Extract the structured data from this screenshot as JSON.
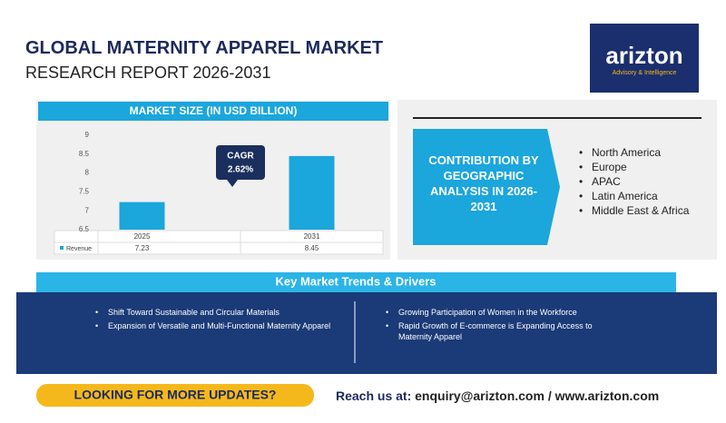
{
  "header": {
    "title": "GLOBAL MATERNITY APPAREL MARKET",
    "subtitle": "RESEARCH REPORT 2026-2031"
  },
  "logo": {
    "name": "arizton",
    "tagline": "Advisory & Intelligence"
  },
  "chart_data": {
    "type": "bar",
    "title": "MARKET SIZE (IN USD BILLION)",
    "categories": [
      "2025",
      "2031"
    ],
    "series": [
      {
        "name": "Revenue",
        "color": "#1ba6dc",
        "values": [
          7.23,
          8.45
        ]
      }
    ],
    "ylim": [
      6.5,
      9
    ],
    "yticks": [
      6.5,
      7,
      7.5,
      8,
      8.5,
      9
    ],
    "annotation": {
      "title": "CAGR",
      "text": "2.62%"
    }
  },
  "geography": {
    "title": "CONTRIBUTION BY GEOGRAPHIC ANALYSIS IN 2026-2031",
    "regions": [
      "North America",
      "Europe",
      "APAC",
      "Latin America",
      "Middle East & Africa"
    ]
  },
  "trends": {
    "title": "Key Market Trends & Drivers",
    "left": [
      "Shift Toward Sustainable and Circular Materials",
      "Expansion of Versatile and Multi-Functional Maternity Apparel"
    ],
    "right": [
      "Growing Participation of Women in the Workforce",
      "Rapid Growth of E-commerce is Expanding Access to Maternity Apparel"
    ]
  },
  "footer": {
    "cta": "LOOKING FOR MORE UPDATES?",
    "reach_label": "Reach us at:",
    "contact": "enquiry@arizton.com / www.arizton.com"
  }
}
